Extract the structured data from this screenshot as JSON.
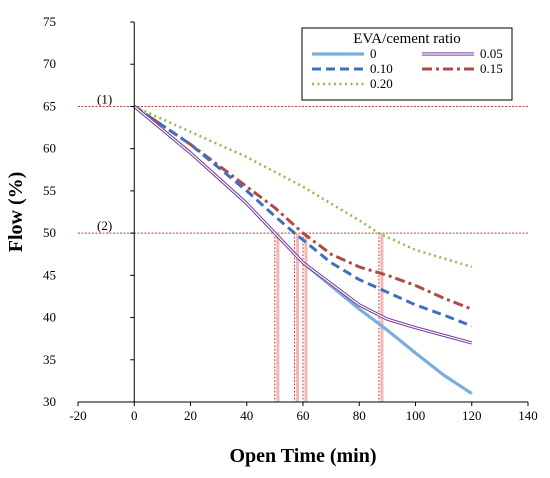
{
  "chart_data": {
    "type": "line",
    "xlabel": "Open Time (min)",
    "ylabel": "Flow (%)",
    "xlim": [
      -20,
      140
    ],
    "ylim": [
      30,
      75
    ],
    "x_ticks": [
      -20,
      0,
      20,
      40,
      60,
      80,
      100,
      120,
      140
    ],
    "y_ticks": [
      30,
      35,
      40,
      45,
      50,
      55,
      60,
      65,
      70,
      75
    ],
    "grid": false,
    "legend": {
      "title": "EVA/cement ratio",
      "placement": "top-right",
      "columns": 2
    },
    "series": [
      {
        "name": "0",
        "color": "#7aaee0",
        "style": "solid-thick",
        "points": [
          [
            0,
            65
          ],
          [
            20,
            59.5
          ],
          [
            40,
            53.5
          ],
          [
            50,
            50
          ],
          [
            60,
            46.5
          ],
          [
            80,
            41
          ],
          [
            90,
            38.5
          ],
          [
            100,
            35.8
          ],
          [
            110,
            33.2
          ],
          [
            120,
            31
          ]
        ]
      },
      {
        "name": "0.05",
        "color": "#7a3d9a",
        "style": "double",
        "points": [
          [
            0,
            65
          ],
          [
            20,
            59.5
          ],
          [
            40,
            53.5
          ],
          [
            50,
            50
          ],
          [
            60,
            46.5
          ],
          [
            80,
            41.5
          ],
          [
            90,
            39.8
          ],
          [
            100,
            38.8
          ],
          [
            110,
            37.9
          ],
          [
            120,
            37
          ]
        ]
      },
      {
        "name": "0.10",
        "color": "#3f6fbe",
        "style": "dashed",
        "points": [
          [
            0,
            65
          ],
          [
            20,
            60.5
          ],
          [
            40,
            55
          ],
          [
            50,
            52
          ],
          [
            57,
            50
          ],
          [
            70,
            46.5
          ],
          [
            80,
            44.5
          ],
          [
            90,
            43
          ],
          [
            100,
            41.5
          ],
          [
            110,
            40.3
          ],
          [
            120,
            39
          ]
        ]
      },
      {
        "name": "0.15",
        "color": "#b04a44",
        "style": "dash-dot",
        "points": [
          [
            0,
            65
          ],
          [
            20,
            60.5
          ],
          [
            40,
            55.5
          ],
          [
            50,
            53
          ],
          [
            60,
            50
          ],
          [
            70,
            47.5
          ],
          [
            80,
            46
          ],
          [
            90,
            45
          ],
          [
            100,
            43.8
          ],
          [
            110,
            42.3
          ],
          [
            120,
            41
          ]
        ]
      },
      {
        "name": "0.20",
        "color": "#8fbf4a",
        "style": "dotted",
        "points": [
          [
            0,
            65
          ],
          [
            20,
            62
          ],
          [
            40,
            59
          ],
          [
            60,
            55.5
          ],
          [
            70,
            53.5
          ],
          [
            80,
            51.5
          ],
          [
            87,
            50
          ],
          [
            100,
            48
          ],
          [
            110,
            47
          ],
          [
            120,
            46
          ]
        ]
      }
    ],
    "reference_lines": {
      "color": "#b8433b",
      "horizontal": [
        {
          "label": "(1)",
          "y": 65
        },
        {
          "label": "(2)",
          "y": 50
        }
      ],
      "vertical_x": [
        50,
        57,
        60,
        87
      ],
      "vertical_band_color": "#f4b6b6"
    }
  }
}
